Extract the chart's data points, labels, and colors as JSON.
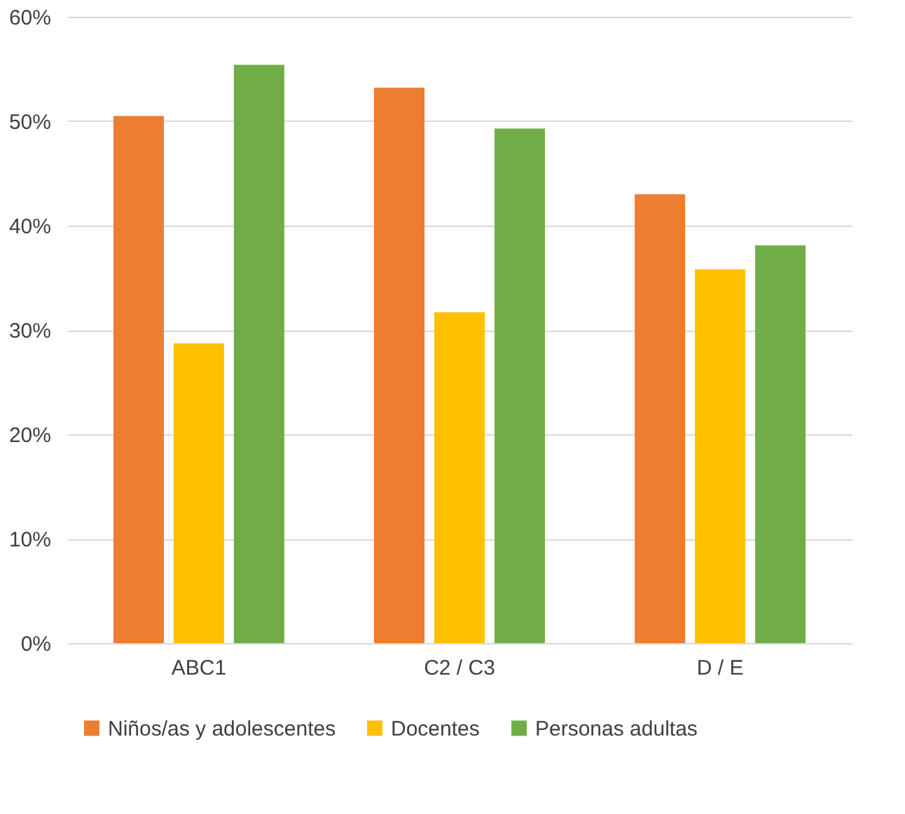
{
  "chart_data": {
    "type": "bar",
    "categories": [
      "ABC1",
      "C2 / C3",
      "D / E"
    ],
    "series": [
      {
        "name": "Niños/as y adolescentes",
        "color": "#ed7d31",
        "values": [
          50.5,
          53.2,
          43.0
        ]
      },
      {
        "name": "Docentes",
        "color": "#ffc000",
        "values": [
          28.7,
          31.7,
          35.8
        ]
      },
      {
        "name": "Personas adultas",
        "color": "#70ad47",
        "values": [
          55.4,
          49.3,
          38.1
        ]
      }
    ],
    "ylim": [
      0,
      60
    ],
    "yticks": [
      {
        "value": 0,
        "label": "0%"
      },
      {
        "value": 10,
        "label": "10%"
      },
      {
        "value": 20,
        "label": "20%"
      },
      {
        "value": 30,
        "label": "30%"
      },
      {
        "value": 40,
        "label": "40%"
      },
      {
        "value": 50,
        "label": "50%"
      },
      {
        "value": 60,
        "label": "60%"
      }
    ],
    "grid": "y",
    "legend": "bottom"
  }
}
